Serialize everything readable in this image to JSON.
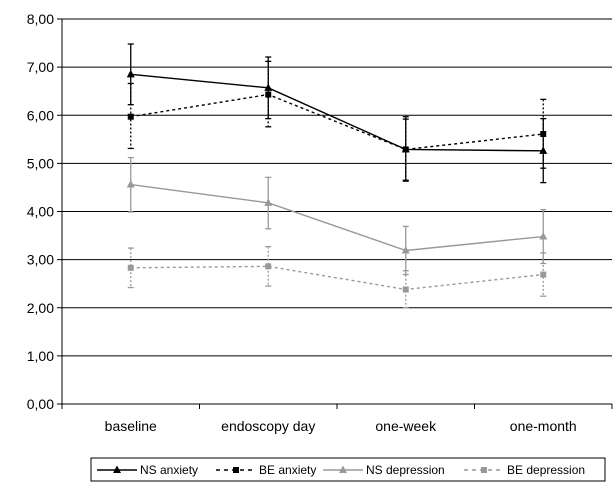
{
  "chart_data": {
    "type": "line",
    "categories": [
      "baseline",
      "endoscopy day",
      "one-week",
      "one-month"
    ],
    "ylim": [
      0,
      8
    ],
    "yticks": [
      "0,00",
      "1,00",
      "2,00",
      "3,00",
      "4,00",
      "5,00",
      "6,00",
      "7,00",
      "8,00"
    ],
    "grid": true,
    "legend_position": "bottom",
    "series": [
      {
        "name": "NS anxiety",
        "values": [
          6.85,
          6.57,
          5.29,
          5.26
        ],
        "error_low": [
          6.22,
          5.93,
          4.63,
          4.6
        ],
        "error_high": [
          7.48,
          7.21,
          5.97,
          5.93
        ],
        "color": "#000000",
        "dash": "solid",
        "marker": "triangle"
      },
      {
        "name": "BE anxiety",
        "values": [
          5.97,
          6.43,
          5.29,
          5.61
        ],
        "error_low": [
          5.31,
          5.76,
          4.65,
          4.9
        ],
        "error_high": [
          6.66,
          7.12,
          5.92,
          6.33
        ],
        "color": "#000000",
        "dash": "dashed",
        "marker": "square"
      },
      {
        "name": "NS depression",
        "values": [
          4.56,
          4.18,
          3.19,
          3.48
        ],
        "error_low": [
          3.99,
          3.64,
          2.69,
          2.92
        ],
        "error_high": [
          5.12,
          4.71,
          3.69,
          4.04
        ],
        "color": "#999999",
        "dash": "solid",
        "marker": "triangle"
      },
      {
        "name": "BE depression",
        "values": [
          2.83,
          2.86,
          2.38,
          2.69
        ],
        "error_low": [
          2.42,
          2.45,
          2.0,
          2.24
        ],
        "error_high": [
          3.24,
          3.27,
          2.77,
          3.14
        ],
        "color": "#999999",
        "dash": "dashed",
        "marker": "square"
      }
    ]
  }
}
